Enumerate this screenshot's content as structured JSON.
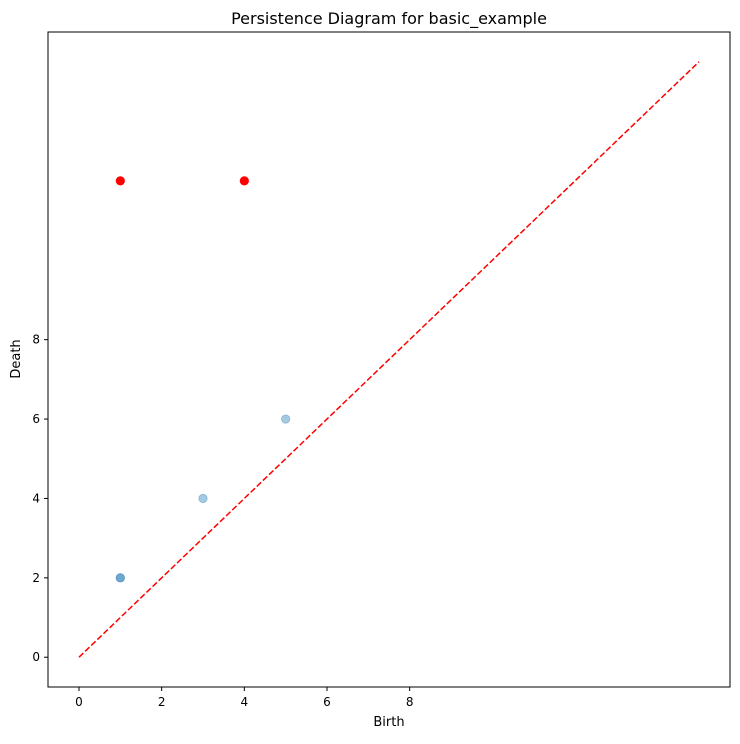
{
  "chart_data": {
    "type": "scatter",
    "title": "Persistence Diagram for basic_example",
    "xlabel": "Birth",
    "ylabel": "Death",
    "xlim": [
      -0.75,
      15.75
    ],
    "ylim": [
      -0.75,
      15.75
    ],
    "x_ticks": [
      0,
      2,
      4,
      6,
      8
    ],
    "y_ticks": [
      0,
      2,
      4,
      6,
      8
    ],
    "grid": false,
    "diagonal": {
      "from": [
        0,
        0
      ],
      "to": [
        15,
        15
      ],
      "style": "dashed",
      "color": "#ff0000"
    },
    "series": [
      {
        "color": "#1f77b4",
        "alpha": 0.4,
        "points": [
          {
            "x": 1,
            "y": 2
          },
          {
            "x": 1,
            "y": 2
          },
          {
            "x": 3,
            "y": 4
          },
          {
            "x": 5,
            "y": 6
          }
        ]
      },
      {
        "color": "#ff0000",
        "alpha": 1.0,
        "points": [
          {
            "x": 1,
            "y": 12
          },
          {
            "x": 4,
            "y": 12
          }
        ]
      }
    ]
  }
}
